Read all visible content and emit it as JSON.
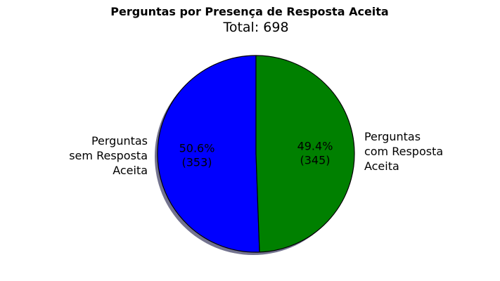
{
  "chart_data": {
    "type": "pie",
    "title": "Perguntas por Presença de Resposta Aceita",
    "subtitle": "Total: 698",
    "slices": [
      {
        "label_lines": [
          "Perguntas",
          "sem Resposta",
          "Aceita"
        ],
        "value": 353,
        "percent_text": "50.6%",
        "count_text": "(353)",
        "color": "#0000ff"
      },
      {
        "label_lines": [
          "Perguntas",
          "com Resposta",
          "Aceita"
        ],
        "value": 345,
        "percent_text": "49.4%",
        "count_text": "(345)",
        "color": "#008000"
      }
    ],
    "shadow": true,
    "start_direction": "top",
    "direction": "counterclockwise"
  }
}
